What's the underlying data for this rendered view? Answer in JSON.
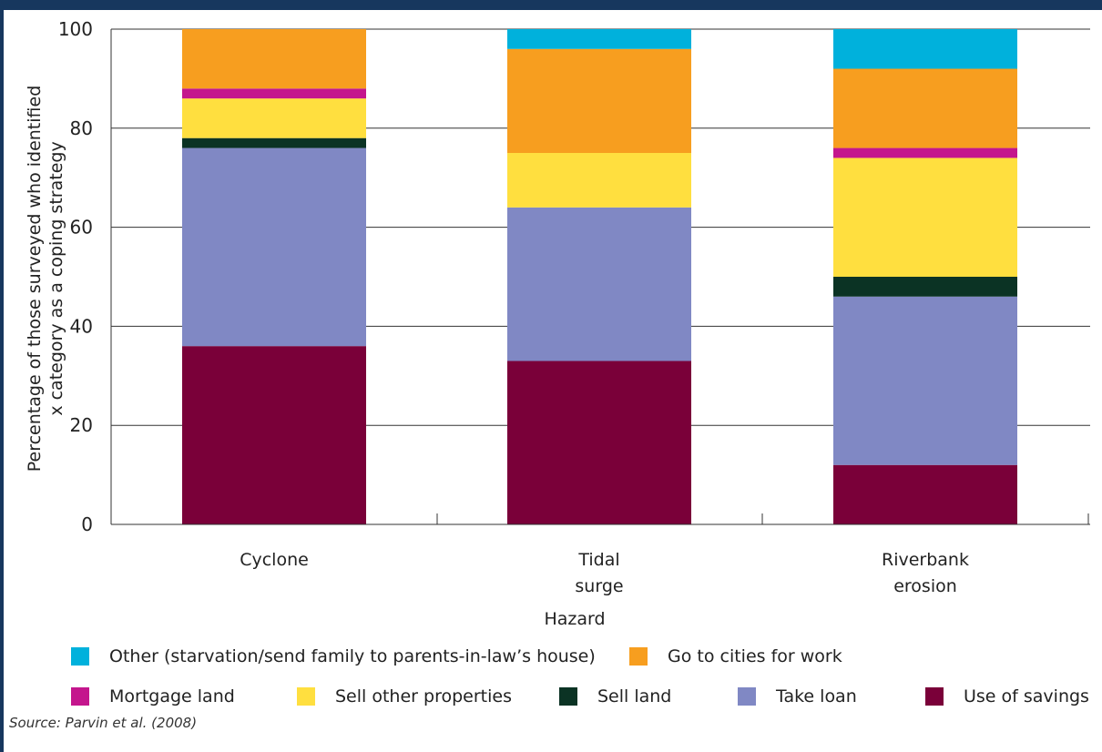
{
  "chart_data": {
    "type": "bar",
    "stacked": true,
    "categories": [
      [
        "Cyclone"
      ],
      [
        "Tidal",
        "surge"
      ],
      [
        "Riverbank",
        "erosion"
      ]
    ],
    "ylabel_lines": [
      "Percentage of those surveyed who identified",
      "x category as a coping strategy"
    ],
    "xlabel": "Hazard",
    "ylim": [
      0,
      100
    ],
    "yticks": [
      0,
      20,
      40,
      60,
      80,
      100
    ],
    "grid": true,
    "legend_position": "bottom",
    "series": [
      {
        "name": "Use of savings",
        "color": "#7a0039",
        "values": [
          36,
          33,
          12
        ]
      },
      {
        "name": "Take loan",
        "color": "#8088c4",
        "values": [
          40,
          31,
          34
        ]
      },
      {
        "name": "Sell land",
        "color": "#0b3324",
        "values": [
          2,
          0,
          4
        ]
      },
      {
        "name": "Sell other properties",
        "color": "#ffdf3f",
        "values": [
          8,
          11,
          24
        ]
      },
      {
        "name": "Mortgage land",
        "color": "#c4168d",
        "values": [
          2,
          0,
          2
        ]
      },
      {
        "name": "Go to cities for work",
        "color": "#f79e1f",
        "values": [
          12,
          21,
          16
        ]
      },
      {
        "name": "Other (starvation/send family to parents-in-law’s house)",
        "color": "#00b1dc",
        "values": [
          0,
          4,
          8
        ]
      }
    ]
  },
  "source": "Source: Parvin et al. (2008)"
}
